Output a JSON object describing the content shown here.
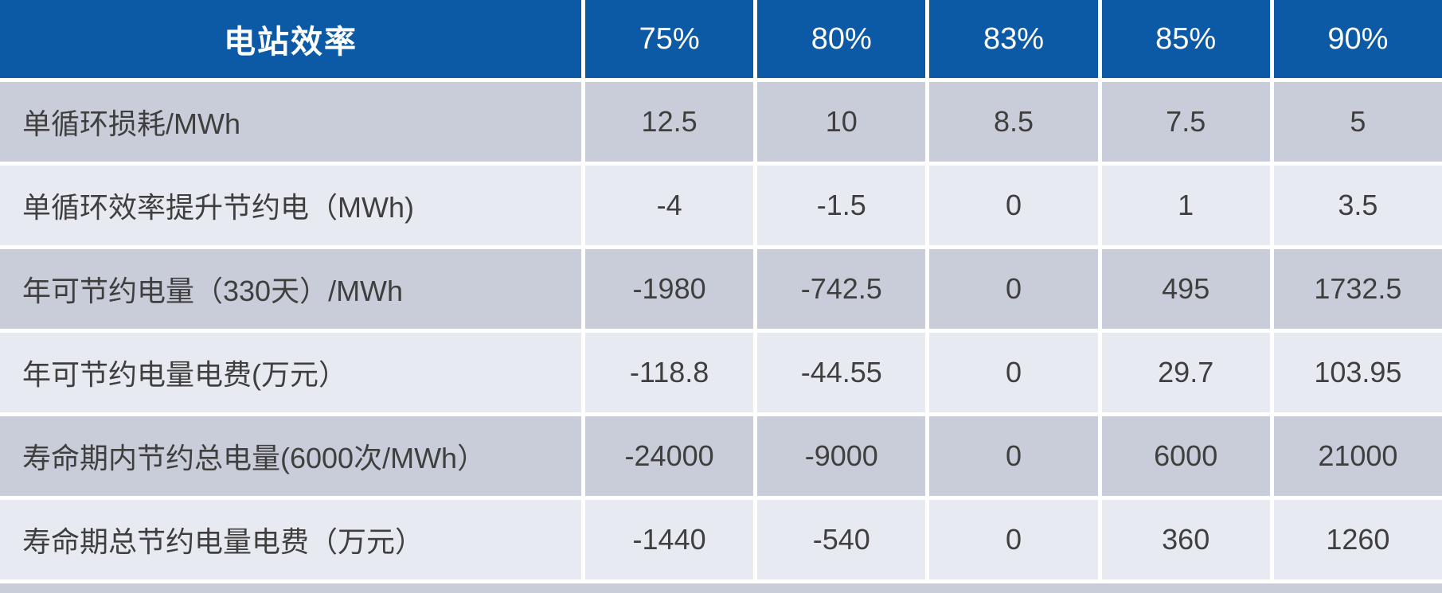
{
  "chart_data": {
    "type": "table",
    "title": "电站效率",
    "columns": [
      "75%",
      "80%",
      "83%",
      "85%",
      "90%"
    ],
    "rows": [
      {
        "label": "单循环损耗/MWh",
        "values": [
          "12.5",
          "10",
          "8.5",
          "7.5",
          "5"
        ]
      },
      {
        "label": "单循环效率提升节约电（MWh)",
        "values": [
          "-4",
          "-1.5",
          "0",
          "1",
          "3.5"
        ]
      },
      {
        "label": "年可节约电量（330天）/MWh",
        "values": [
          "-1980",
          "-742.5",
          "0",
          "495",
          "1732.5"
        ]
      },
      {
        "label": "年可节约电量电费(万元）",
        "values": [
          "-118.8",
          "-44.55",
          "0",
          "29.7",
          "103.95"
        ]
      },
      {
        "label": "寿命期内节约总电量(6000次/MWh）",
        "values": [
          "-24000",
          "-9000",
          "0",
          "6000",
          "21000"
        ]
      },
      {
        "label": "寿命期总节约电量电费（万元）",
        "values": [
          "-1440",
          "-540",
          "0",
          "360",
          "1260"
        ]
      }
    ],
    "layout": {
      "header_position": "top",
      "label_column_align": "left",
      "value_columns_align": "center",
      "alternating_row_shading": true
    }
  },
  "colors": {
    "header_bg": "#0c5aa6",
    "header_text": "#ffffff",
    "row_odd_bg": "#c9cdda",
    "row_even_bg": "#e8eaf1",
    "body_text": "#3f3f3f",
    "separator": "#ffffff"
  }
}
